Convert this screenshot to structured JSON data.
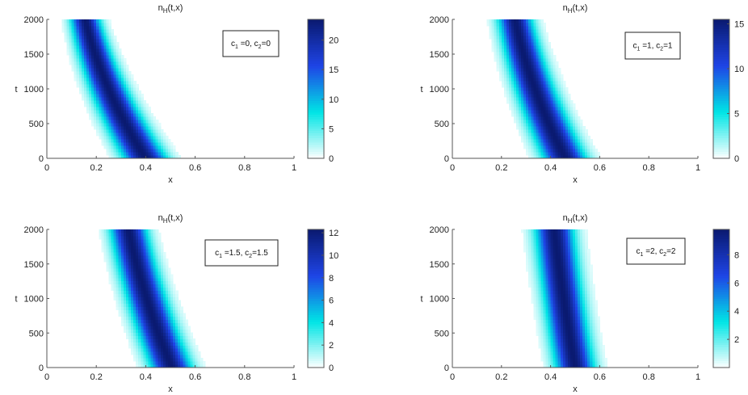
{
  "chart_data": [
    {
      "type": "heatmap",
      "title": "n_H(t,x)",
      "title_main": "n",
      "title_sub": "H",
      "title_rest": "(t,x)",
      "xlabel": "x",
      "ylabel": "t",
      "xlim": [
        0,
        1
      ],
      "ylim": [
        0,
        2000
      ],
      "xticks": [
        0,
        0.2,
        0.4,
        0.6,
        0.8,
        1
      ],
      "yticks": [
        0,
        500,
        1000,
        1500,
        2000
      ],
      "colorbar": {
        "min": 0,
        "max": 23.5,
        "ticks": [
          0,
          5,
          10,
          15,
          20
        ]
      },
      "annotation": {
        "c1_label": "c",
        "c1_sub": "1",
        "c1_value": " =0, ",
        "c2_label": "c",
        "c2_sub": "2",
        "c2_value": "=0"
      },
      "ridge": {
        "x_at_t0": 0.4,
        "x_at_tmax": 0.155,
        "curvature": 0.5,
        "width_at_t0": 0.09,
        "width_at_tmax": 0.06,
        "peak": 23.5
      },
      "grid": false,
      "colormap": [
        "#ffffff",
        "#00e5e5",
        "#1e44e6",
        "#0a1a70"
      ]
    },
    {
      "type": "heatmap",
      "title": "n_H(t,x)",
      "title_main": "n",
      "title_sub": "H",
      "title_rest": "(t,x)",
      "xlabel": "x",
      "ylabel": "t",
      "xlim": [
        0,
        1
      ],
      "ylim": [
        0,
        2000
      ],
      "xticks": [
        0,
        0.2,
        0.4,
        0.6,
        0.8,
        1
      ],
      "yticks": [
        0,
        500,
        1000,
        1500,
        2000
      ],
      "colorbar": {
        "min": 0,
        "max": 15.5,
        "ticks": [
          0,
          5,
          10,
          15
        ]
      },
      "annotation": {
        "c1_label": "c",
        "c1_sub": "1",
        "c1_value": " =1, ",
        "c2_label": "c",
        "c2_sub": "2",
        "c2_value": "=1"
      },
      "ridge": {
        "x_at_t0": 0.46,
        "x_at_tmax": 0.255,
        "curvature": 0.45,
        "width_at_t0": 0.09,
        "width_at_tmax": 0.07,
        "peak": 15.5
      },
      "grid": false,
      "colormap": [
        "#ffffff",
        "#00e5e5",
        "#1e44e6",
        "#0a1a70"
      ]
    },
    {
      "type": "heatmap",
      "title": "n_H(t,x)",
      "title_main": "n",
      "title_sub": "H",
      "title_rest": "(t,x)",
      "xlabel": "x",
      "ylabel": "t",
      "xlim": [
        0,
        1
      ],
      "ylim": [
        0,
        2000
      ],
      "xticks": [
        0,
        0.2,
        0.4,
        0.6,
        0.8,
        1
      ],
      "yticks": [
        0,
        500,
        1000,
        1500,
        2000
      ],
      "colorbar": {
        "min": 0,
        "max": 12.3,
        "ticks": [
          0,
          2,
          4,
          6,
          8,
          10,
          12
        ]
      },
      "annotation": {
        "c1_label": "c",
        "c1_sub": "1",
        "c1_value": " =1.5, ",
        "c2_label": "c",
        "c2_sub": "2",
        "c2_value": "=1.5"
      },
      "ridge": {
        "x_at_t0": 0.505,
        "x_at_tmax": 0.33,
        "curvature": 0.35,
        "width_at_t0": 0.085,
        "width_at_tmax": 0.075,
        "peak": 12.3
      },
      "grid": false,
      "colormap": [
        "#ffffff",
        "#00e5e5",
        "#1e44e6",
        "#0a1a70"
      ]
    },
    {
      "type": "heatmap",
      "title": "n_H(t,x)",
      "title_main": "n",
      "title_sub": "H",
      "title_rest": "(t,x)",
      "xlabel": "x",
      "ylabel": "t",
      "xlim": [
        0,
        1
      ],
      "ylim": [
        0,
        2000
      ],
      "xticks": [
        0,
        0.2,
        0.4,
        0.6,
        0.8,
        1
      ],
      "yticks": [
        0,
        500,
        1000,
        1500,
        2000
      ],
      "colorbar": {
        "min": 0,
        "max": 9.8,
        "ticks": [
          2,
          4,
          6,
          8
        ]
      },
      "annotation": {
        "c1_label": "c",
        "c1_sub": "1",
        "c1_value": " =2, ",
        "c2_label": "c",
        "c2_sub": "2",
        "c2_value": "=2"
      },
      "ridge": {
        "x_at_t0": 0.5,
        "x_at_tmax": 0.415,
        "curvature": 0.25,
        "width_at_t0": 0.08,
        "width_at_tmax": 0.08,
        "peak": 9.8
      },
      "grid": false,
      "colormap": [
        "#ffffff",
        "#00e5e5",
        "#1e44e6",
        "#0a1a70"
      ]
    }
  ]
}
